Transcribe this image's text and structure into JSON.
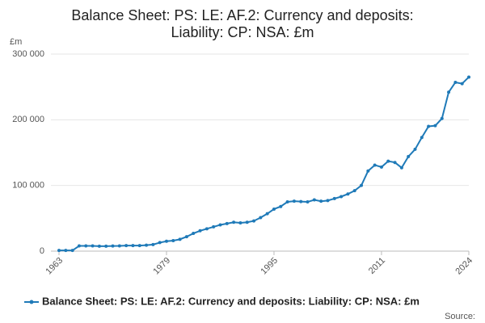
{
  "chart_data": {
    "type": "line",
    "title": [
      "Balance Sheet: PS: LE: AF.2: Currency and deposits:",
      "Liability: CP: NSA: £m"
    ],
    "y_axis_label": "£m",
    "source": "Source:",
    "x": [
      1963,
      1964,
      1965,
      1966,
      1967,
      1968,
      1969,
      1970,
      1971,
      1972,
      1973,
      1974,
      1975,
      1976,
      1977,
      1978,
      1979,
      1980,
      1981,
      1982,
      1983,
      1984,
      1985,
      1986,
      1987,
      1988,
      1989,
      1990,
      1991,
      1992,
      1993,
      1994,
      1995,
      1996,
      1997,
      1998,
      1999,
      2000,
      2001,
      2002,
      2003,
      2004,
      2005,
      2006,
      2007,
      2008,
      2009,
      2010,
      2011,
      2012,
      2013,
      2014,
      2015,
      2016,
      2017,
      2018,
      2019,
      2020,
      2021,
      2022,
      2023,
      2024
    ],
    "series": [
      {
        "name": "Balance Sheet: PS: LE: AF.2: Currency and deposits: Liability: CP: NSA: £m",
        "color": "#1f7ab8",
        "values": [
          1000,
          1000,
          1000,
          8000,
          8000,
          8000,
          7500,
          7500,
          7800,
          8000,
          8500,
          8500,
          8500,
          9000,
          10000,
          13000,
          15000,
          16000,
          18000,
          22000,
          27000,
          31000,
          34000,
          37000,
          40000,
          42000,
          44000,
          43000,
          44000,
          46000,
          51000,
          57000,
          64000,
          68000,
          75000,
          76000,
          75500,
          75000,
          78000,
          76000,
          77000,
          80000,
          83000,
          87000,
          92000,
          100000,
          122000,
          131000,
          128000,
          137000,
          135000,
          127000,
          144000,
          155000,
          173000,
          190000,
          191000,
          202000,
          242000,
          257000,
          255000,
          265000
        ]
      }
    ],
    "xlim": [
      1963,
      2024
    ],
    "xticks": [
      1963,
      1979,
      1995,
      2011,
      2024
    ],
    "ylim": [
      0,
      300000
    ],
    "yticks": [
      0,
      {
        "value": 100000,
        "label": "100 000"
      },
      {
        "value": 200000,
        "label": "200 000"
      },
      {
        "value": 300000,
        "label": "300 000"
      }
    ],
    "grid": true
  }
}
